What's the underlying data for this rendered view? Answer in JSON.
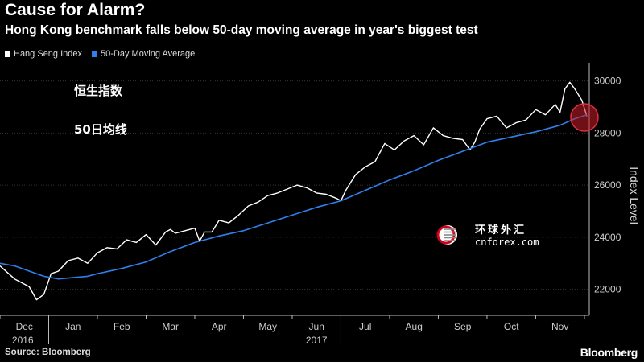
{
  "chart_data": {
    "type": "line",
    "title": "Cause for Alarm?",
    "subtitle": "Hong Kong benchmark falls below 50-day moving average in year's biggest test",
    "ylabel": "Index Level",
    "ylim": [
      21000,
      30700
    ],
    "yticks": [
      22000,
      24000,
      26000,
      28000,
      30000
    ],
    "xlim": [
      0,
      12.1
    ],
    "month_ticks": [
      {
        "label": "Dec",
        "pos": 0.5
      },
      {
        "label": "Jan",
        "pos": 1.5
      },
      {
        "label": "Feb",
        "pos": 2.5
      },
      {
        "label": "Mar",
        "pos": 3.5
      },
      {
        "label": "Apr",
        "pos": 4.5
      },
      {
        "label": "May",
        "pos": 5.5
      },
      {
        "label": "Jun",
        "pos": 6.5
      },
      {
        "label": "Jul",
        "pos": 7.5
      },
      {
        "label": "Aug",
        "pos": 8.5
      },
      {
        "label": "Sep",
        "pos": 9.5
      },
      {
        "label": "Oct",
        "pos": 10.5
      },
      {
        "label": "Nov",
        "pos": 11.5
      }
    ],
    "year_labels": [
      {
        "label": "2016",
        "pos": 0.5
      },
      {
        "label": "2017",
        "pos": 6.5
      }
    ],
    "series": [
      {
        "name": "Hang Seng Index",
        "color": "#ffffff",
        "x": [
          0,
          0.3,
          0.6,
          0.75,
          0.9,
          1.05,
          1.2,
          1.4,
          1.6,
          1.8,
          2.0,
          2.2,
          2.4,
          2.6,
          2.8,
          3.0,
          3.2,
          3.4,
          3.5,
          3.6,
          3.8,
          4.0,
          4.1,
          4.2,
          4.35,
          4.5,
          4.7,
          4.9,
          5.1,
          5.3,
          5.5,
          5.7,
          5.9,
          6.1,
          6.3,
          6.5,
          6.7,
          6.9,
          7.0,
          7.1,
          7.3,
          7.5,
          7.7,
          7.9,
          8.1,
          8.3,
          8.5,
          8.7,
          8.9,
          9.1,
          9.3,
          9.5,
          9.65,
          9.75,
          9.85,
          10.0,
          10.2,
          10.4,
          10.6,
          10.8,
          11.0,
          11.2,
          11.4,
          11.5,
          11.6,
          11.7,
          11.8,
          11.95,
          12.05
        ],
        "values": [
          22900,
          22400,
          22100,
          21600,
          21800,
          22600,
          22700,
          23100,
          23200,
          23000,
          23400,
          23600,
          23550,
          23900,
          23800,
          24100,
          23700,
          24200,
          24300,
          24150,
          24250,
          24350,
          23850,
          24200,
          24200,
          24650,
          24550,
          24850,
          25200,
          25350,
          25600,
          25700,
          25850,
          26000,
          25900,
          25700,
          25650,
          25500,
          25400,
          25800,
          26400,
          26700,
          26900,
          27600,
          27350,
          27700,
          27900,
          27550,
          28200,
          27900,
          27800,
          27750,
          27350,
          27650,
          28150,
          28550,
          28650,
          28200,
          28400,
          28500,
          28900,
          28700,
          29100,
          28800,
          29700,
          29950,
          29700,
          29250,
          28650
        ]
      },
      {
        "name": "50-Day Moving Average",
        "color": "#2f80ed",
        "x": [
          0,
          0.3,
          0.6,
          0.9,
          1.2,
          1.5,
          1.8,
          2.0,
          2.5,
          3.0,
          3.5,
          4.0,
          4.5,
          5.0,
          5.5,
          6.0,
          6.5,
          7.0,
          7.5,
          8.0,
          8.5,
          9.0,
          9.5,
          10.0,
          10.5,
          11.0,
          11.5,
          11.8,
          12.05
        ],
        "values": [
          23000,
          22900,
          22700,
          22500,
          22400,
          22450,
          22500,
          22600,
          22800,
          23050,
          23450,
          23800,
          24050,
          24250,
          24550,
          24850,
          25150,
          25400,
          25800,
          26200,
          26550,
          26950,
          27300,
          27650,
          27850,
          28050,
          28300,
          28550,
          28700
        ]
      }
    ],
    "highlight": {
      "x": 12.05,
      "value": 28600
    }
  },
  "annotations": {
    "hsi_cn": "恒生指数",
    "ma_cn": "50日均线"
  },
  "watermark": {
    "cn": "环球外汇",
    "en": "cnforex.com"
  },
  "footer": {
    "source": "Source: Bloomberg",
    "brand": "Bloomberg"
  }
}
